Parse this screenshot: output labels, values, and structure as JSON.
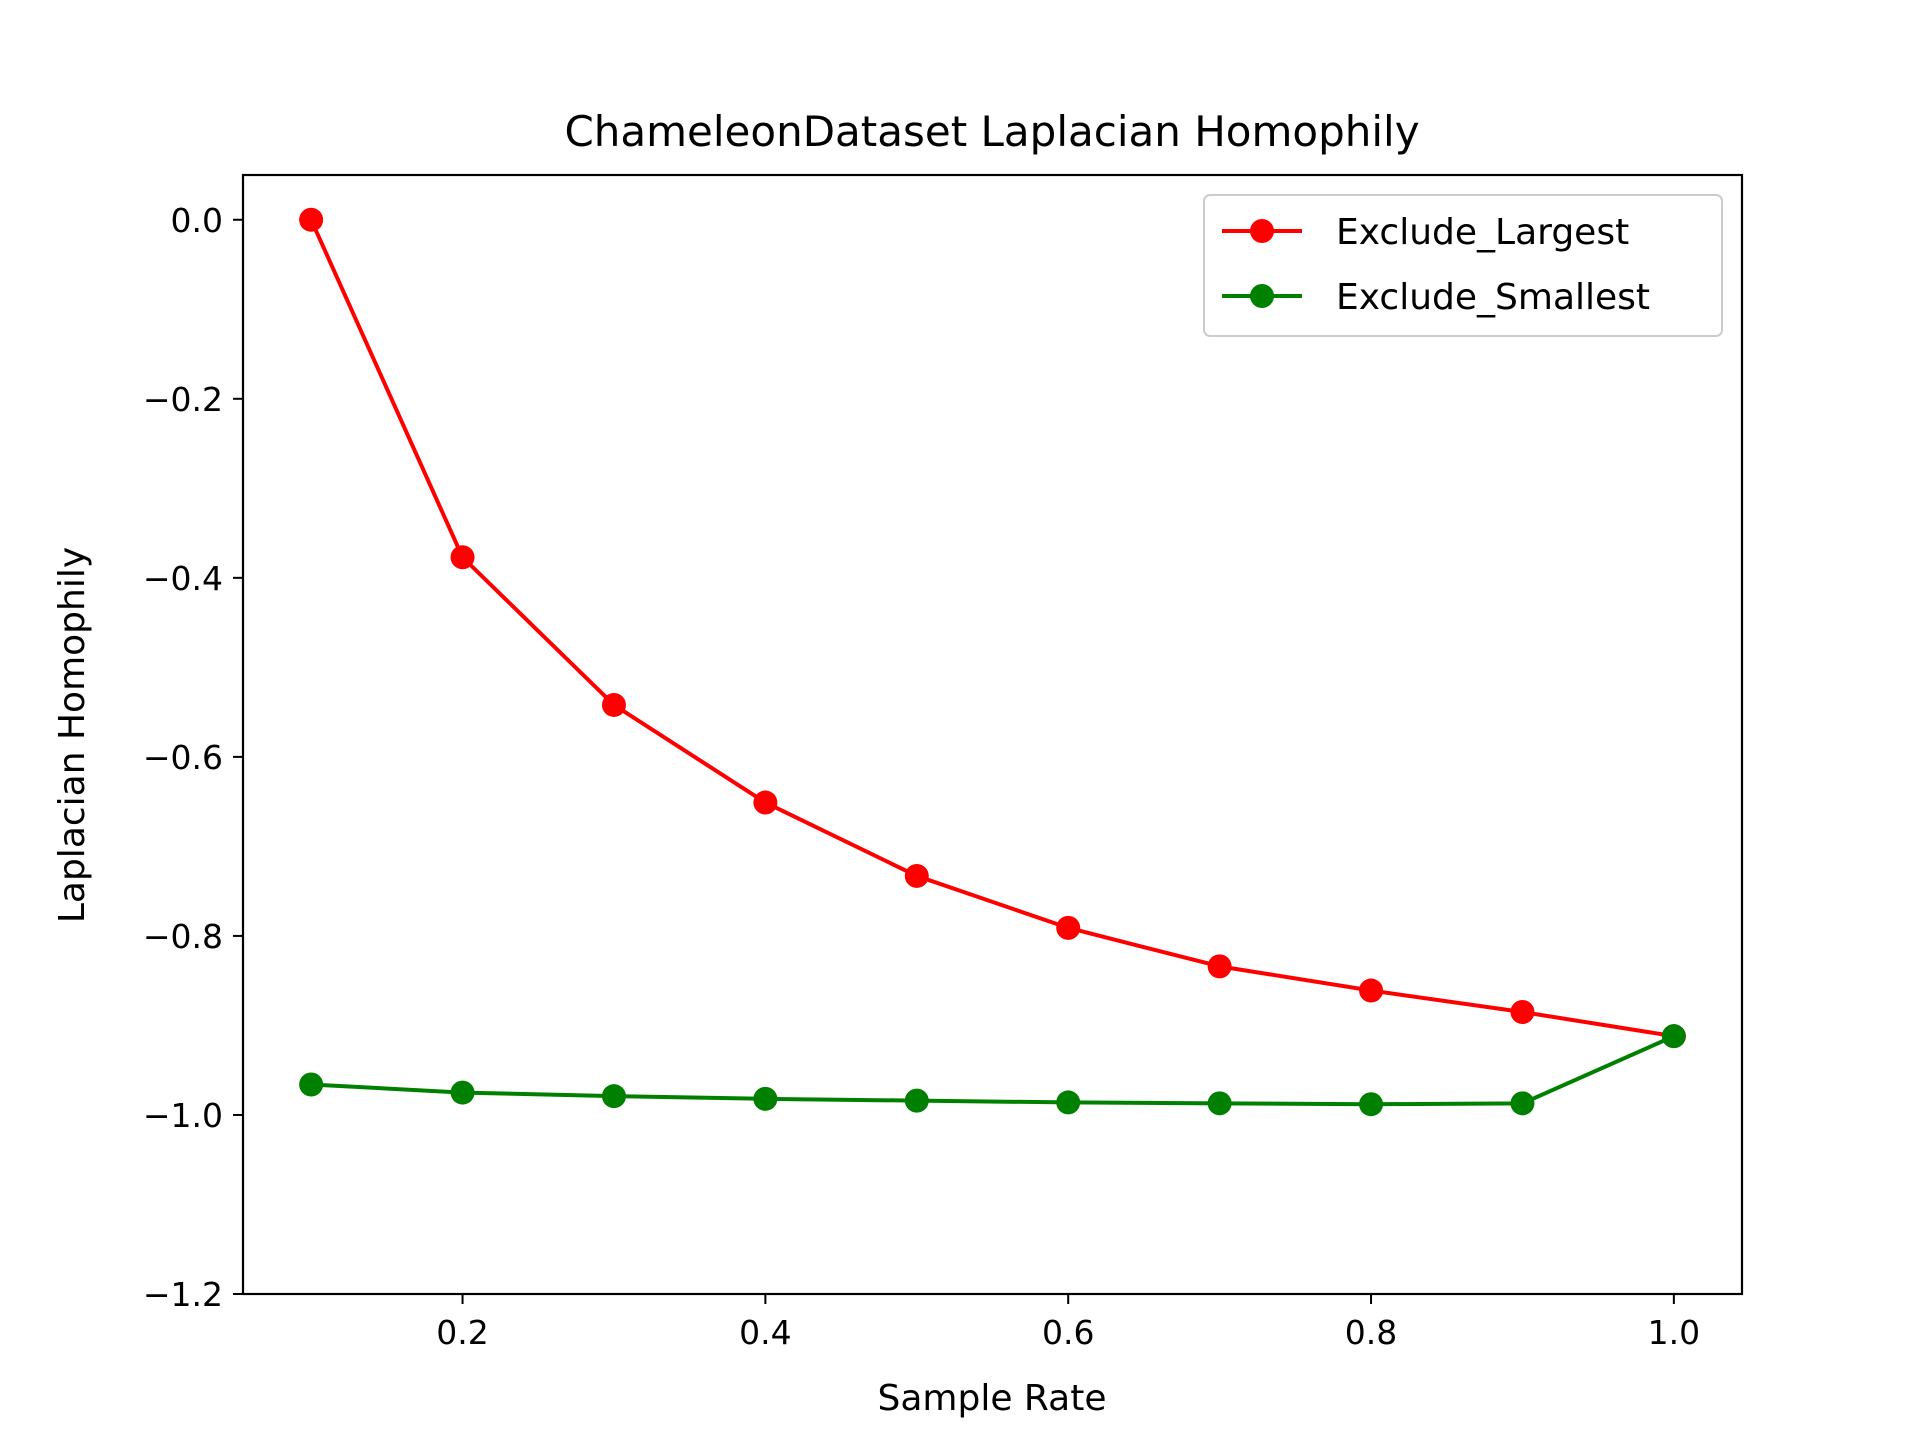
{
  "chart_data": {
    "type": "line",
    "title": "ChameleonDataset Laplacian Homophily",
    "xlabel": "Sample Rate",
    "ylabel": "Laplacian Homophily",
    "xlim": [
      0.055,
      1.045
    ],
    "ylim": [
      -1.2,
      0.05
    ],
    "xticks": [
      0.2,
      0.4,
      0.6,
      0.8,
      1.0
    ],
    "xtick_labels": [
      "0.2",
      "0.4",
      "0.6",
      "0.8",
      "1.0"
    ],
    "yticks": [
      0.0,
      -0.2,
      -0.4,
      -0.6,
      -0.8,
      -1.0,
      -1.2
    ],
    "ytick_labels": [
      "0.0",
      "−0.2",
      "−0.4",
      "−0.6",
      "−0.8",
      "−1.0",
      "−1.2"
    ],
    "grid": false,
    "legend": "top-right",
    "x": [
      0.1,
      0.2,
      0.3,
      0.4,
      0.5,
      0.6,
      0.7,
      0.8,
      0.9,
      1.0
    ],
    "series": [
      {
        "name": "Exclude_Largest",
        "color": "#ff0000",
        "values": [
          0.0,
          -0.377,
          -0.542,
          -0.651,
          -0.733,
          -0.791,
          -0.834,
          -0.861,
          -0.885,
          -0.912
        ]
      },
      {
        "name": "Exclude_Smallest",
        "color": "#008000",
        "values": [
          -0.966,
          -0.975,
          -0.979,
          -0.982,
          -0.984,
          -0.986,
          -0.987,
          -0.988,
          -0.987,
          -0.912
        ]
      }
    ]
  }
}
